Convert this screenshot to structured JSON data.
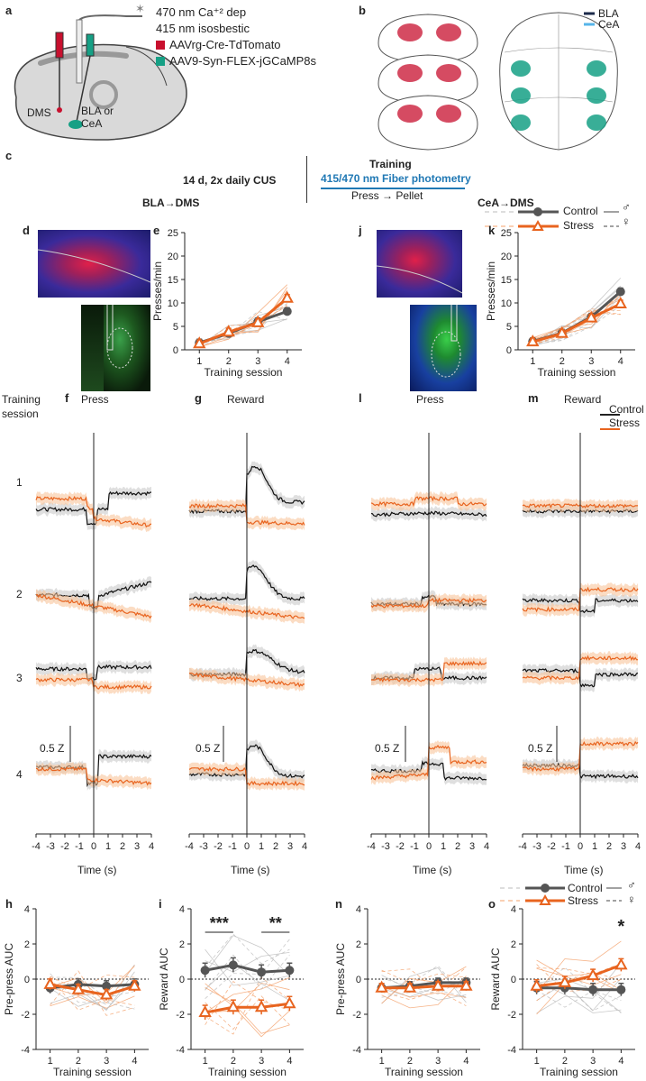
{
  "panel_letters": {
    "a": "a",
    "b": "b",
    "c": "c",
    "d": "d",
    "e": "e",
    "f": "f",
    "g": "g",
    "h": "h",
    "i": "i",
    "j": "j",
    "k": "k",
    "l": "l",
    "m": "m",
    "n": "n",
    "o": "o"
  },
  "panel_a": {
    "light1": "470 nm Ca⁺² dep",
    "light2": "415 nm isosbestic",
    "virus_red": "AAVrg-Cre-TdTomato",
    "virus_green": "AAV9-Syn-FLEX-jGCaMP8s",
    "region_dms": "DMS",
    "region_bla": "BLA or",
    "region_cea": "CeA"
  },
  "panel_b": {
    "legend_bla": "BLA",
    "legend_cea": "CeA"
  },
  "panel_c": {
    "cus": "14 d, 2x daily CUS",
    "training_title": "Training",
    "photometry": "415/470 nm Fiber photometry",
    "press_pellet": "Press → Pellet",
    "left_title": "BLA→DMS",
    "right_title": "CeA→DMS"
  },
  "legend": {
    "control": "Control",
    "stress": "Stress",
    "male": "♂",
    "female": "♀"
  },
  "colors": {
    "control": "#555555",
    "stress": "#e8641f",
    "stress_light": "#f4a06a",
    "control_light": "#bbbbbb",
    "red": "#c8102e",
    "green": "#16a085"
  },
  "side_labels": {
    "training": "Training",
    "session": "session",
    "sessions": [
      "1",
      "2",
      "3",
      "4"
    ]
  },
  "trace_panels": {
    "f": "Press",
    "g": "Reward",
    "l": "Press",
    "m": "Reward",
    "scale": "0.5 Z",
    "xlabel": "Time (s)",
    "xticks": [
      "-4",
      "-3",
      "-2",
      "-1",
      "0",
      "1",
      "2",
      "3",
      "4"
    ],
    "legend_control": "Control",
    "legend_stress": "Stress"
  },
  "chart_data": [
    {
      "id": "e",
      "type": "line",
      "title": "",
      "xlabel": "Training session",
      "ylabel": "Presses/min",
      "categories": [
        "1",
        "2",
        "3",
        "4"
      ],
      "ylim": [
        0,
        25
      ],
      "yticks": [
        "0",
        "5",
        "10",
        "15",
        "20",
        "25"
      ],
      "series": [
        {
          "name": "Control",
          "values": [
            1.5,
            3.5,
            6,
            8.2
          ]
        },
        {
          "name": "Stress",
          "values": [
            1.3,
            3.8,
            5.8,
            11
          ]
        }
      ]
    },
    {
      "id": "k",
      "type": "line",
      "title": "",
      "xlabel": "Training session",
      "ylabel": "Presses/min",
      "categories": [
        "1",
        "2",
        "3",
        "4"
      ],
      "ylim": [
        0,
        25
      ],
      "yticks": [
        "0",
        "5",
        "10",
        "15",
        "20",
        "25"
      ],
      "series": [
        {
          "name": "Control",
          "values": [
            1.8,
            3.6,
            7,
            12.4
          ]
        },
        {
          "name": "Stress",
          "values": [
            1.7,
            3.5,
            6.8,
            9.8
          ]
        }
      ]
    },
    {
      "id": "h",
      "type": "line",
      "title": "",
      "xlabel": "Training session",
      "ylabel": "Pre-press AUC",
      "categories": [
        "1",
        "2",
        "3",
        "4"
      ],
      "ylim": [
        -4,
        4
      ],
      "yticks": [
        "-4",
        "-2",
        "0",
        "2",
        "4"
      ],
      "series": [
        {
          "name": "Control",
          "values": [
            -0.5,
            -0.3,
            -0.4,
            -0.3
          ]
        },
        {
          "name": "Stress",
          "values": [
            -0.3,
            -0.6,
            -0.9,
            -0.4
          ]
        }
      ]
    },
    {
      "id": "i",
      "type": "line",
      "title": "",
      "xlabel": "Training session",
      "ylabel": "Reward AUC",
      "categories": [
        "1",
        "2",
        "3",
        "4"
      ],
      "ylim": [
        -4,
        4
      ],
      "yticks": [
        "-4",
        "-2",
        "0",
        "2",
        "4"
      ],
      "annotations": [
        "***",
        "**"
      ],
      "series": [
        {
          "name": "Control",
          "values": [
            0.5,
            0.8,
            0.4,
            0.5
          ]
        },
        {
          "name": "Stress",
          "values": [
            -1.9,
            -1.6,
            -1.6,
            -1.4
          ]
        }
      ]
    },
    {
      "id": "n",
      "type": "line",
      "title": "",
      "xlabel": "Training session",
      "ylabel": "Pre-press AUC",
      "categories": [
        "1",
        "2",
        "3",
        "4"
      ],
      "ylim": [
        -4,
        4
      ],
      "yticks": [
        "-4",
        "-2",
        "0",
        "2",
        "4"
      ],
      "series": [
        {
          "name": "Control",
          "values": [
            -0.5,
            -0.4,
            -0.2,
            -0.2
          ]
        },
        {
          "name": "Stress",
          "values": [
            -0.5,
            -0.5,
            -0.4,
            -0.4
          ]
        }
      ]
    },
    {
      "id": "o",
      "type": "line",
      "title": "",
      "xlabel": "Training session",
      "ylabel": "Reward AUC",
      "categories": [
        "1",
        "2",
        "3",
        "4"
      ],
      "ylim": [
        -4,
        4
      ],
      "yticks": [
        "-4",
        "-2",
        "0",
        "2",
        "4"
      ],
      "annotations": [
        "*"
      ],
      "series": [
        {
          "name": "Control",
          "values": [
            -0.5,
            -0.5,
            -0.6,
            -0.6
          ]
        },
        {
          "name": "Stress",
          "values": [
            -0.4,
            -0.2,
            0.2,
            0.8
          ]
        }
      ]
    }
  ]
}
